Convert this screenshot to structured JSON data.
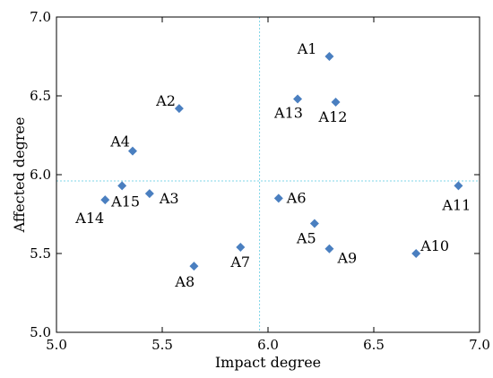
{
  "chart_data": {
    "type": "scatter",
    "title": "",
    "xlabel": "Impact degree",
    "ylabel": "Affected degree",
    "xlim": [
      5.0,
      7.0
    ],
    "ylim": [
      5.0,
      7.0
    ],
    "x_ticks": [
      5.0,
      5.5,
      6.0,
      6.5,
      7.0
    ],
    "y_ticks": [
      5.0,
      5.5,
      6.0,
      6.5,
      7.0
    ],
    "x_tick_labels": [
      "5.0",
      "5.5",
      "6.0",
      "6.5",
      "7.0"
    ],
    "y_tick_labels": [
      "5.0",
      "5.5",
      "6.0",
      "6.5",
      "7.0"
    ],
    "grid": false,
    "reference_lines": {
      "x_mean": 5.96,
      "y_mean": 5.96,
      "style": "dotted",
      "color": "#7fd6e8"
    },
    "marker": {
      "shape": "diamond",
      "color": "#4a7fc0"
    },
    "points": [
      {
        "label": "A1",
        "x": 6.29,
        "y": 6.75
      },
      {
        "label": "A2",
        "x": 5.58,
        "y": 6.42
      },
      {
        "label": "A3",
        "x": 5.44,
        "y": 5.88
      },
      {
        "label": "A4",
        "x": 5.36,
        "y": 6.15
      },
      {
        "label": "A5",
        "x": 6.22,
        "y": 5.69
      },
      {
        "label": "A6",
        "x": 6.05,
        "y": 5.85
      },
      {
        "label": "A7",
        "x": 5.87,
        "y": 5.54
      },
      {
        "label": "A8",
        "x": 5.65,
        "y": 5.42
      },
      {
        "label": "A9",
        "x": 6.29,
        "y": 5.53
      },
      {
        "label": "A10",
        "x": 6.7,
        "y": 5.5
      },
      {
        "label": "A11",
        "x": 6.9,
        "y": 5.93
      },
      {
        "label": "A12",
        "x": 6.32,
        "y": 6.46
      },
      {
        "label": "A13",
        "x": 6.14,
        "y": 6.48
      },
      {
        "label": "A14",
        "x": 5.23,
        "y": 5.84
      },
      {
        "label": "A15",
        "x": 5.31,
        "y": 5.93
      }
    ]
  }
}
